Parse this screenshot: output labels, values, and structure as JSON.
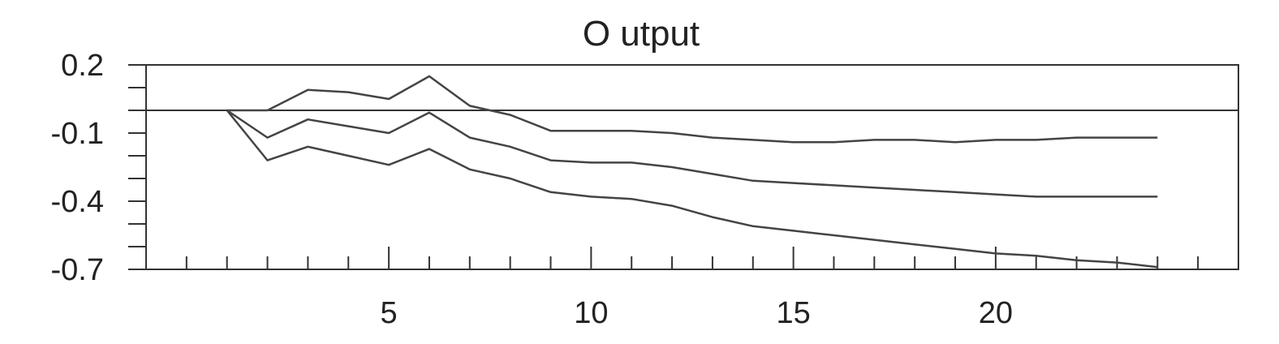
{
  "chart_data": {
    "type": "line",
    "title": "O utput",
    "xlabel": "",
    "ylabel": "",
    "xlim": [
      -1,
      26
    ],
    "ylim": [
      -0.7,
      0.2
    ],
    "x_ticks": [
      5,
      10,
      15,
      20
    ],
    "y_ticks": [
      0.2,
      -0.1,
      -0.4,
      -0.7
    ],
    "zero_line": 0,
    "grid": false,
    "x": [
      1,
      2,
      3,
      4,
      5,
      6,
      7,
      8,
      9,
      10,
      11,
      12,
      13,
      14,
      15,
      16,
      17,
      18,
      19,
      20,
      21,
      22,
      23,
      24
    ],
    "series": [
      {
        "values": [
          0.0,
          0.0,
          0.09,
          0.08,
          0.05,
          0.15,
          0.02,
          -0.02,
          -0.09,
          -0.09,
          -0.09,
          -0.1,
          -0.12,
          -0.13,
          -0.14,
          -0.14,
          -0.13,
          -0.13,
          -0.14,
          -0.13,
          -0.13,
          -0.12,
          -0.12,
          -0.12
        ]
      },
      {
        "values": [
          0.0,
          -0.12,
          -0.04,
          -0.07,
          -0.1,
          -0.01,
          -0.12,
          -0.16,
          -0.22,
          -0.23,
          -0.23,
          -0.25,
          -0.28,
          -0.31,
          -0.32,
          -0.33,
          -0.34,
          -0.35,
          -0.36,
          -0.37,
          -0.38,
          -0.38,
          -0.38,
          -0.38
        ]
      },
      {
        "values": [
          0.0,
          -0.22,
          -0.16,
          -0.2,
          -0.24,
          -0.17,
          -0.26,
          -0.3,
          -0.36,
          -0.38,
          -0.39,
          -0.42,
          -0.47,
          -0.51,
          -0.53,
          -0.55,
          -0.57,
          -0.59,
          -0.61,
          -0.63,
          -0.64,
          -0.66,
          -0.67,
          -0.69
        ]
      }
    ]
  }
}
